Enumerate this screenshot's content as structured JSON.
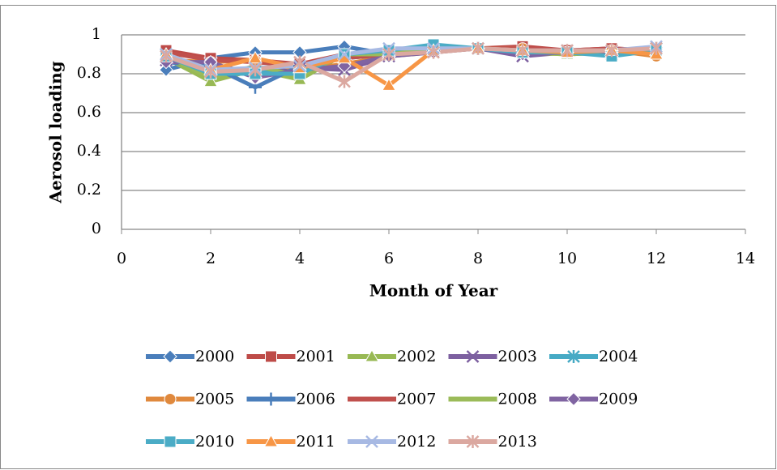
{
  "chart_data": {
    "type": "line",
    "x_label": "Month of Year",
    "y_label": "Aerosol loading",
    "x": [
      1,
      2,
      3,
      4,
      5,
      6,
      7,
      8,
      9,
      10,
      11,
      12
    ],
    "xlim": [
      0,
      14
    ],
    "xticks": [
      0,
      2,
      4,
      6,
      8,
      10,
      12,
      14
    ],
    "ylim": [
      0,
      1
    ],
    "yticks": [
      0,
      0.2,
      0.4,
      0.6,
      0.8,
      1
    ],
    "grid": true,
    "legend": "bottom",
    "series": [
      {
        "name": "2000",
        "color": "#4a7ebb",
        "marker": "diamond",
        "values": [
          0.82,
          0.88,
          0.91,
          0.91,
          0.94,
          0.9,
          0.92,
          0.93,
          0.92,
          0.91,
          0.92,
          0.93
        ]
      },
      {
        "name": "2001",
        "color": "#be4b48",
        "marker": "square",
        "values": [
          0.92,
          0.88,
          0.87,
          0.85,
          0.9,
          0.9,
          0.92,
          0.93,
          0.94,
          0.92,
          0.93,
          0.92
        ]
      },
      {
        "name": "2002",
        "color": "#98b954",
        "marker": "triangle",
        "values": [
          0.88,
          0.76,
          0.82,
          0.77,
          0.9,
          0.9,
          0.93,
          0.93,
          0.91,
          0.9,
          0.91,
          0.92
        ]
      },
      {
        "name": "2003",
        "color": "#7d60a0",
        "marker": "x",
        "values": [
          0.87,
          0.85,
          0.8,
          0.83,
          0.82,
          0.89,
          0.92,
          0.93,
          0.89,
          0.91,
          0.91,
          0.93
        ]
      },
      {
        "name": "2004",
        "color": "#46aac5",
        "marker": "star",
        "values": [
          0.9,
          0.8,
          0.81,
          0.8,
          0.9,
          0.91,
          0.93,
          0.93,
          0.91,
          0.91,
          0.9,
          0.93
        ]
      },
      {
        "name": "2005",
        "color": "#e0893d",
        "marker": "circle",
        "values": [
          0.87,
          0.86,
          0.87,
          0.82,
          0.85,
          0.89,
          0.91,
          0.93,
          0.93,
          0.91,
          0.92,
          0.89
        ]
      },
      {
        "name": "2006",
        "color": "#4a7ebb",
        "marker": "plus",
        "values": [
          0.86,
          0.84,
          0.73,
          0.84,
          0.88,
          0.9,
          0.92,
          0.93,
          0.91,
          0.91,
          0.91,
          0.93
        ]
      },
      {
        "name": "2007",
        "color": "#c0504d",
        "marker": "none",
        "values": [
          0.91,
          0.87,
          0.86,
          0.84,
          0.88,
          0.9,
          0.92,
          0.93,
          0.93,
          0.92,
          0.93,
          0.92
        ]
      },
      {
        "name": "2008",
        "color": "#9bbb59",
        "marker": "none",
        "values": [
          0.89,
          0.78,
          0.84,
          0.79,
          0.9,
          0.9,
          0.93,
          0.93,
          0.91,
          0.9,
          0.91,
          0.92
        ]
      },
      {
        "name": "2009",
        "color": "#8064a2",
        "marker": "diamond",
        "values": [
          0.86,
          0.86,
          0.78,
          0.82,
          0.84,
          0.89,
          0.91,
          0.93,
          0.9,
          0.91,
          0.91,
          0.93
        ]
      },
      {
        "name": "2010",
        "color": "#4bacc6",
        "marker": "square",
        "values": [
          0.89,
          0.8,
          0.8,
          0.8,
          0.9,
          0.92,
          0.95,
          0.93,
          0.91,
          0.91,
          0.89,
          0.92
        ]
      },
      {
        "name": "2011",
        "color": "#f79646",
        "marker": "triangle",
        "values": [
          0.9,
          0.82,
          0.88,
          0.83,
          0.88,
          0.74,
          0.92,
          0.93,
          0.92,
          0.91,
          0.92,
          0.9
        ]
      },
      {
        "name": "2012",
        "color": "#a7b9e3",
        "marker": "x",
        "values": [
          0.9,
          0.82,
          0.83,
          0.84,
          0.9,
          0.93,
          0.93,
          0.93,
          0.92,
          0.92,
          0.92,
          0.94
        ]
      },
      {
        "name": "2013",
        "color": "#dba8a0",
        "marker": "star",
        "values": [
          0.89,
          0.81,
          0.82,
          0.86,
          0.76,
          0.9,
          0.91,
          0.93,
          0.92,
          0.92,
          0.92,
          0.93
        ]
      }
    ]
  }
}
